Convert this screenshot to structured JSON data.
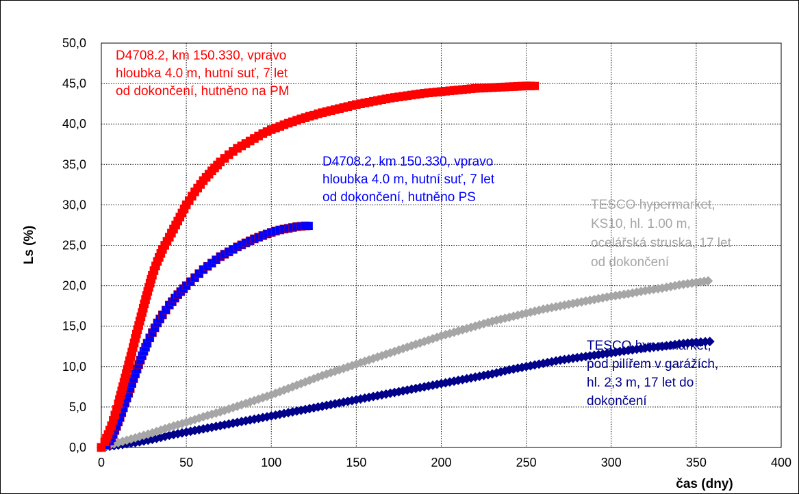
{
  "chart_data": {
    "type": "scatter",
    "xlabel": "čas (dny)",
    "ylabel": "Ls (%)",
    "xlim": [
      0,
      400
    ],
    "ylim": [
      0,
      50
    ],
    "x_ticks": [
      0,
      50,
      100,
      150,
      200,
      250,
      300,
      350,
      400
    ],
    "y_ticks": [
      0,
      5,
      10,
      15,
      20,
      25,
      30,
      35,
      40,
      45,
      50
    ],
    "x_tick_labels": [
      "0",
      "50",
      "100",
      "150",
      "200",
      "250",
      "300",
      "350",
      "400"
    ],
    "y_tick_labels": [
      "0,0",
      "5,0",
      "10,0",
      "15,0",
      "20,0",
      "25,0",
      "30,0",
      "35,0",
      "40,0",
      "45,0",
      "50,0"
    ],
    "grid": "dotted",
    "legend": "none",
    "series": [
      {
        "key": "pm",
        "color": "#ff0000",
        "marker": "square",
        "annotation": [
          "D4708.2, km 150.330, vpravo",
          "hloubka 4.0 m, hutní suť, 7 let",
          "od dokončení, hutněno na PM"
        ],
        "x": [
          0,
          2,
          4,
          6,
          8,
          10,
          12,
          14,
          16,
          18,
          20,
          22,
          24,
          26,
          28,
          30,
          33,
          36,
          40,
          45,
          50,
          55,
          60,
          65,
          70,
          75,
          80,
          85,
          90,
          95,
          100,
          110,
          120,
          130,
          140,
          150,
          160,
          170,
          180,
          190,
          200,
          210,
          220,
          230,
          240,
          250,
          255
        ],
        "y": [
          0,
          0.7,
          1.6,
          2.7,
          4.0,
          5.4,
          7.0,
          8.6,
          10.2,
          11.8,
          13.5,
          15.1,
          16.7,
          18.3,
          19.8,
          21.3,
          23.0,
          24.5,
          26.0,
          28.0,
          30.0,
          31.6,
          33.0,
          34.2,
          35.3,
          36.2,
          37.0,
          37.6,
          38.2,
          38.8,
          39.3,
          40.1,
          40.8,
          41.4,
          41.9,
          42.4,
          42.8,
          43.2,
          43.5,
          43.8,
          44.0,
          44.2,
          44.4,
          44.5,
          44.6,
          44.7,
          44.7
        ]
      },
      {
        "key": "ps",
        "color": "#0000ff",
        "marker": "square",
        "annotation": [
          "D4708.2, km 150.330, vpravo",
          "hloubka 4.0 m, hutní suť, 7 let",
          "od dokončení, hutněno PS"
        ],
        "x": [
          0,
          3,
          5,
          7,
          9,
          11,
          13,
          15,
          17,
          19,
          21,
          23,
          25,
          27,
          30,
          33,
          36,
          40,
          45,
          50,
          55,
          60,
          65,
          70,
          75,
          80,
          85,
          90,
          95,
          100,
          105,
          110,
          115,
          120,
          122
        ],
        "y": [
          0,
          0.3,
          0.8,
          1.6,
          2.6,
          3.7,
          4.9,
          6.1,
          7.3,
          8.5,
          9.7,
          10.8,
          11.9,
          12.9,
          14.2,
          15.4,
          16.4,
          17.6,
          18.9,
          20.0,
          21.0,
          22.0,
          22.8,
          23.6,
          24.2,
          24.8,
          25.3,
          25.8,
          26.2,
          26.6,
          26.9,
          27.1,
          27.3,
          27.4,
          27.4
        ]
      },
      {
        "key": "ks10",
        "color": "#a6a6a6",
        "marker": "diamond",
        "annotation": [
          "TESCO hypermarket,",
          "KS10, hl. 1.00 m,",
          "ocelářská struska, 17 let",
          "od dokončení"
        ],
        "x": [
          0,
          10,
          20,
          30,
          40,
          50,
          60,
          70,
          80,
          90,
          100,
          110,
          120,
          130,
          140,
          150,
          160,
          170,
          180,
          190,
          200,
          210,
          220,
          230,
          240,
          250,
          260,
          270,
          280,
          290,
          300,
          310,
          320,
          330,
          340,
          350,
          357
        ],
        "y": [
          0,
          0.6,
          1.2,
          1.8,
          2.5,
          3.1,
          3.8,
          4.4,
          5.1,
          5.8,
          6.5,
          7.3,
          8.1,
          8.9,
          9.6,
          10.3,
          11.0,
          11.7,
          12.4,
          13.1,
          13.8,
          14.4,
          15.0,
          15.6,
          16.1,
          16.6,
          17.1,
          17.5,
          17.9,
          18.3,
          18.7,
          19.0,
          19.4,
          19.7,
          20.1,
          20.4,
          20.6
        ]
      },
      {
        "key": "garaz",
        "color": "#00008b",
        "marker": "diamond",
        "annotation": [
          "TESCO hypermarket,",
          "pod pilířem v garážích,",
          "hl. 2,3 m, 17 let do",
          "dokončení"
        ],
        "x": [
          0,
          10,
          20,
          30,
          40,
          50,
          60,
          70,
          80,
          90,
          100,
          110,
          120,
          130,
          140,
          150,
          160,
          170,
          180,
          190,
          200,
          210,
          220,
          230,
          240,
          250,
          260,
          270,
          280,
          290,
          300,
          310,
          320,
          330,
          340,
          350,
          358
        ],
        "y": [
          0,
          0.3,
          0.6,
          1.0,
          1.5,
          1.9,
          2.3,
          2.7,
          3.1,
          3.5,
          3.9,
          4.3,
          4.7,
          5.1,
          5.5,
          5.9,
          6.3,
          6.7,
          7.1,
          7.5,
          7.9,
          8.3,
          8.7,
          9.1,
          9.6,
          10.0,
          10.4,
          10.8,
          11.1,
          11.4,
          11.7,
          12.0,
          12.3,
          12.5,
          12.8,
          13.0,
          13.1
        ]
      }
    ]
  }
}
